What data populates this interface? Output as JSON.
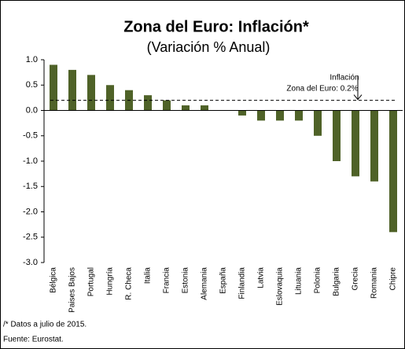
{
  "chart_data": {
    "type": "bar",
    "title": "Zona del Euro: Inflación*",
    "subtitle": "(Variación % Anual)",
    "categories": [
      "Bélgica",
      "Paises Bajos",
      "Portugal",
      "Hungría",
      "R. Checa",
      "Italia",
      "Francia",
      "Estonia",
      "Alemania",
      "España",
      "Finlandia",
      "Latvia",
      "Eslovaquia",
      "Lituania",
      "Polonia",
      "Bulgaria",
      "Grecia",
      "Romania",
      "Chipre"
    ],
    "values": [
      0.9,
      0.8,
      0.7,
      0.5,
      0.4,
      0.3,
      0.2,
      0.1,
      0.1,
      0.0,
      -0.1,
      -0.2,
      -0.2,
      -0.2,
      -0.5,
      -1.0,
      -1.3,
      -1.4,
      -2.4
    ],
    "color": "#4f6228",
    "ylim": [
      -3,
      1
    ],
    "yticks": [
      {
        "value": 1,
        "label": "1.0"
      },
      0.5,
      {
        "value": 0,
        "label": "0.0"
      },
      -0.5,
      {
        "value": -1,
        "label": "-1.0"
      },
      -1.5,
      {
        "value": -2,
        "label": "-2.0"
      },
      -2.5,
      {
        "value": -3,
        "label": "-3.0"
      }
    ],
    "reference_line": {
      "value": 0.2,
      "annotation": [
        "Inflación",
        "Zona del Euro: 0.2%"
      ]
    },
    "notes": [
      "/* Datos a julio de 2015.",
      "Fuente: Eurostat."
    ]
  }
}
